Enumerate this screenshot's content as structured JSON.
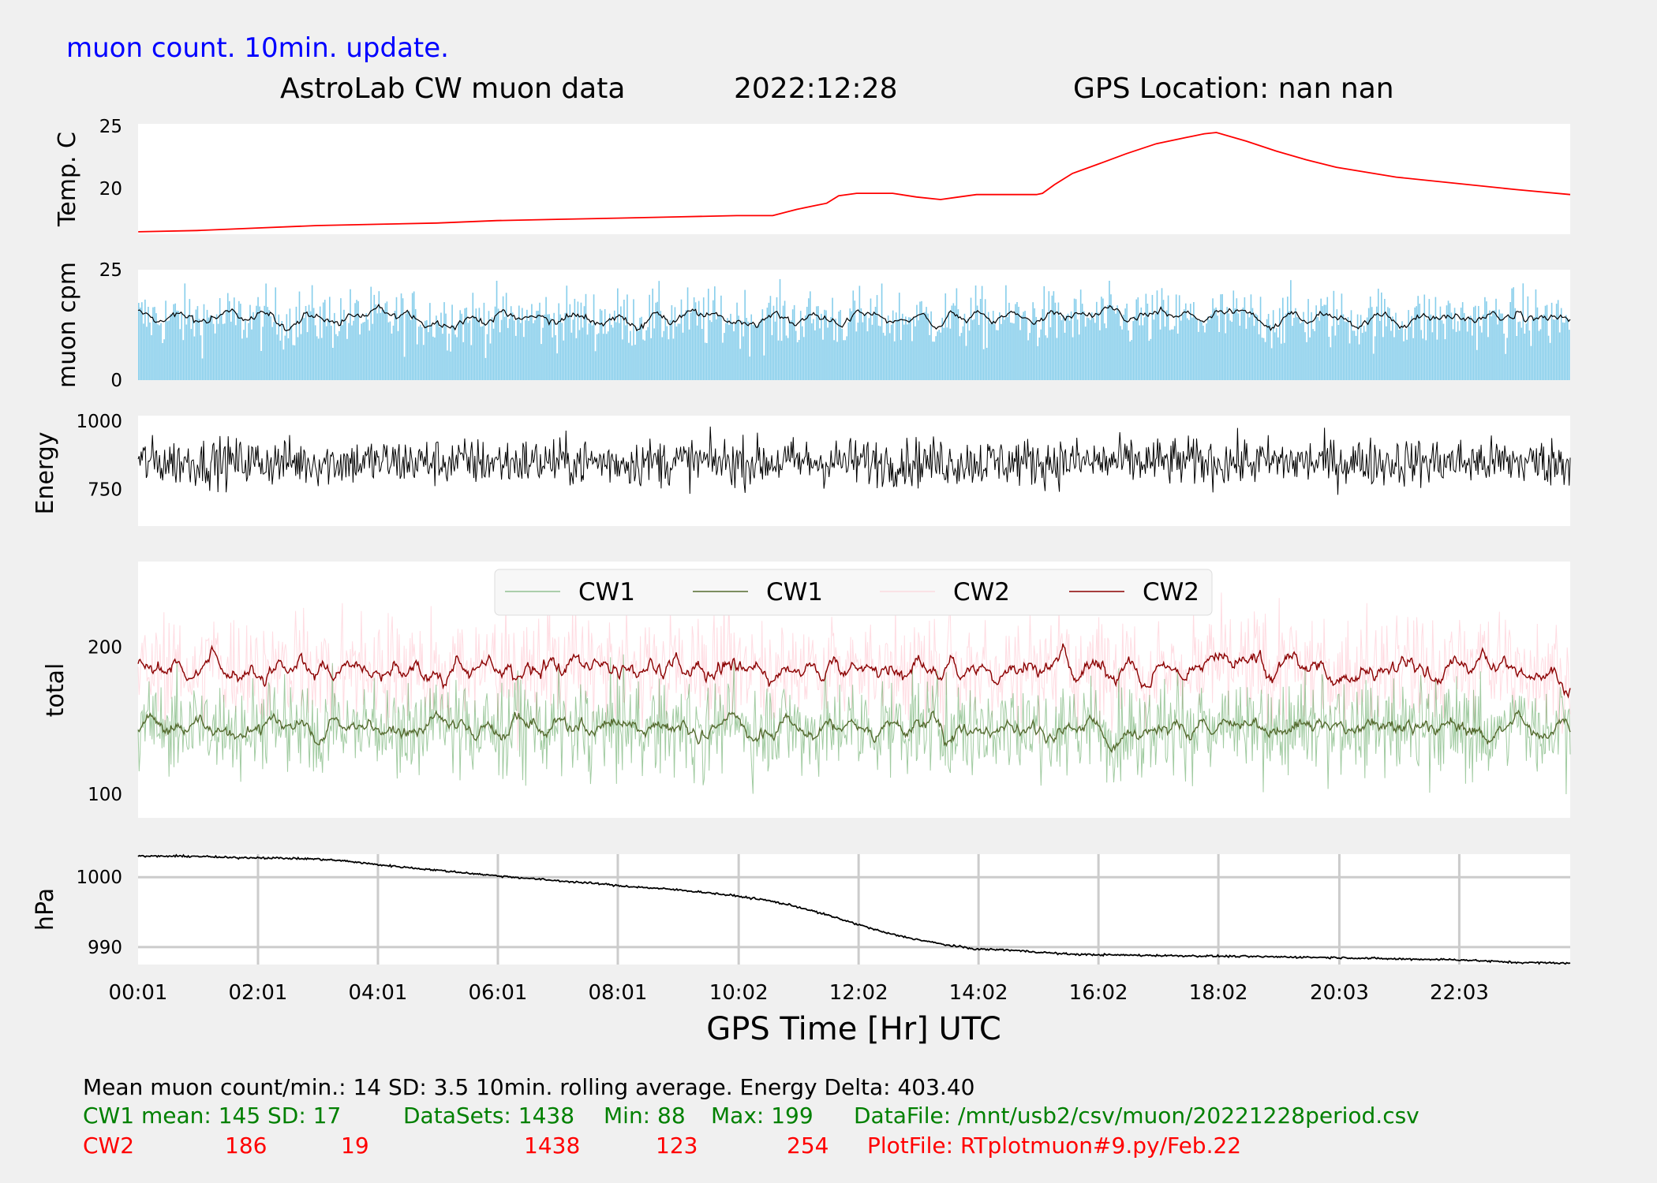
{
  "header": {
    "update_note": "muon count.  10min. update.",
    "title": "AstroLab CW muon data",
    "date": "2022:12:28",
    "gps_location": "GPS Location: nan   nan"
  },
  "xaxis": {
    "label": "GPS Time  [Hr] UTC",
    "ticks": [
      "00:01",
      "02:01",
      "04:01",
      "06:01",
      "08:01",
      "10:02",
      "12:02",
      "14:02",
      "16:02",
      "18:02",
      "20:03",
      "22:03"
    ],
    "tick_hours": [
      0.017,
      2.017,
      4.017,
      6.017,
      8.017,
      10.033,
      12.033,
      14.033,
      16.033,
      18.033,
      20.05,
      22.05
    ],
    "range_hours": [
      0.017,
      23.9
    ]
  },
  "colors": {
    "temp": "#ff0000",
    "cpm_bars": "#87ceeb",
    "cpm_avg": "#000000",
    "energy": "#000000",
    "cw1_raw": "#2e8b2e",
    "cw1_avg": "#556b2f",
    "cw2_raw": "#ffc0cb",
    "cw2_avg": "#8b0000",
    "pressure": "#000000",
    "note_blue": "#0000ff",
    "stat_green": "#008000",
    "stat_red": "#ff0000"
  },
  "chart_data": [
    {
      "type": "line",
      "panel": "temperature",
      "ylabel": "Temp. C",
      "yticks": [
        20,
        25
      ],
      "ylim": [
        16.3,
        25.2
      ],
      "series": [
        {
          "x": [
            0.02,
            1,
            2,
            3,
            4,
            5,
            6,
            7,
            8,
            9,
            10,
            10.3,
            10.6,
            11,
            11.3,
            11.5,
            11.7,
            12,
            12.3,
            12.6,
            13,
            13.4,
            13.7,
            14,
            14.5,
            15,
            15.1,
            15.3,
            15.6,
            16,
            16.5,
            17,
            17.5,
            17.6,
            17.8,
            18,
            18.5,
            19,
            19.5,
            20,
            21,
            22,
            23,
            23.9
          ],
          "y": [
            16.5,
            16.6,
            16.8,
            17.0,
            17.1,
            17.2,
            17.4,
            17.5,
            17.6,
            17.7,
            17.8,
            17.8,
            17.8,
            18.3,
            18.6,
            18.8,
            19.4,
            19.6,
            19.6,
            19.6,
            19.3,
            19.1,
            19.3,
            19.5,
            19.5,
            19.5,
            19.6,
            20.3,
            21.2,
            21.9,
            22.8,
            23.6,
            24.1,
            24.2,
            24.4,
            24.5,
            23.8,
            23.0,
            22.3,
            21.7,
            20.9,
            20.4,
            19.9,
            19.5
          ]
        }
      ]
    },
    {
      "type": "bar",
      "panel": "muon_cpm",
      "ylabel": "muon cpm",
      "yticks": [
        0,
        25
      ],
      "ylim": [
        0,
        25
      ],
      "mean": 14,
      "sd": 3.5,
      "series": [
        {
          "rolling": "10min."
        }
      ]
    },
    {
      "type": "line",
      "panel": "energy",
      "ylabel": "Energy",
      "yticks": [
        750,
        1000
      ],
      "ylim": [
        615,
        1020
      ],
      "mean": 850,
      "series": [
        {
          "values": []
        }
      ]
    },
    {
      "type": "line",
      "panel": "total",
      "ylabel": "total",
      "yticks": [
        100,
        200
      ],
      "ylim": [
        84,
        258
      ],
      "legend": "top-center",
      "series": [
        {
          "name": "CW1",
          "kind": "raw",
          "mean": 145,
          "sd": 17,
          "min": 88,
          "max": 199
        },
        {
          "name": "CW1",
          "kind": "avg"
        },
        {
          "name": "CW2",
          "kind": "raw",
          "mean": 186,
          "sd": 19,
          "min": 123,
          "max": 254
        },
        {
          "name": "CW2",
          "kind": "avg"
        }
      ]
    },
    {
      "type": "line",
      "panel": "pressure",
      "ylabel": "hPa",
      "yticks": [
        990,
        1000
      ],
      "ylim": [
        987.5,
        1003.3
      ],
      "grid": true,
      "series": [
        {
          "x": [
            0.02,
            1,
            1.5,
            2,
            3,
            3.5,
            4,
            5,
            6,
            7,
            7.8,
            8,
            8.5,
            9,
            9.5,
            10,
            10.5,
            11,
            11.5,
            12,
            12.5,
            13,
            13.5,
            14,
            14.5,
            15,
            15.5,
            16,
            17,
            18,
            19,
            20,
            21,
            22,
            22.5,
            23,
            23.9
          ],
          "y": [
            1003.0,
            1003.0,
            1002.8,
            1002.8,
            1002.6,
            1002.3,
            1001.8,
            1001.0,
            1000.2,
            999.5,
            999.0,
            998.8,
            998.5,
            998.2,
            997.8,
            997.3,
            996.7,
            995.8,
            994.6,
            993.3,
            992.0,
            991.1,
            990.3,
            989.7,
            989.6,
            989.3,
            989.0,
            988.9,
            988.8,
            988.7,
            988.6,
            988.5,
            988.3,
            988.2,
            988.0,
            987.8,
            987.7
          ]
        }
      ]
    }
  ],
  "stats": {
    "line1": "Mean muon count/min.: 14  SD: 3.5   10min. rolling average.    Energy Delta:  403.40",
    "cw1_row": [
      "CW1 mean: 145",
      "SD: 17",
      "DataSets: 1438",
      "Min: 88",
      "Max: 199",
      "DataFile: /mnt/usb2/csv/muon/20221228period.csv"
    ],
    "cw2_row": [
      "CW2",
      "186",
      "19",
      "1438",
      "123",
      "254",
      "PlotFile: RTplotmuon#9.py/Feb.22"
    ]
  }
}
